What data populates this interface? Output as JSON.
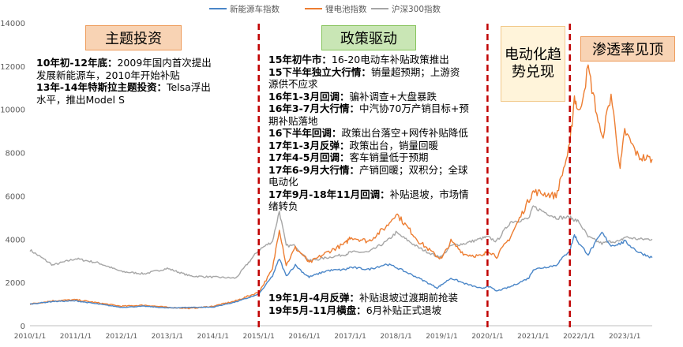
{
  "chart_data": {
    "type": "line",
    "title": "",
    "xlabel": "",
    "ylabel": "",
    "ylim": [
      0,
      14000
    ],
    "yticks": [
      0,
      2000,
      4000,
      6000,
      8000,
      10000,
      12000,
      14000
    ],
    "xtick_labels": [
      "2010/1/1",
      "2011/1/1",
      "2012/1/1",
      "2013/1/1",
      "2014/1/1",
      "2015/1/1",
      "2016/1/1",
      "2017/1/1",
      "2018/1/1",
      "2019/1/1",
      "2020/1/1",
      "2021/1/1",
      "2022/1/1",
      "2023/1/1"
    ],
    "legend_position": "top",
    "grid": false,
    "series": [
      {
        "name": "新能源车指数",
        "color": "#4a86c8",
        "x": [
          2010.0,
          2010.5,
          2011.0,
          2011.5,
          2012.0,
          2012.5,
          2013.0,
          2013.5,
          2014.0,
          2014.5,
          2015.0,
          2015.3,
          2015.45,
          2015.6,
          2015.8,
          2016.0,
          2016.1,
          2016.5,
          2016.9,
          2017.0,
          2017.4,
          2017.8,
          2018.0,
          2018.5,
          2018.9,
          2019.0,
          2019.2,
          2019.5,
          2019.9,
          2020.0,
          2020.2,
          2020.5,
          2020.9,
          2021.0,
          2021.5,
          2021.8,
          2021.9,
          2022.0,
          2022.2,
          2022.5,
          2022.7,
          2022.9,
          2023.0,
          2023.3,
          2023.6
        ],
        "y": [
          1000,
          1120,
          1150,
          1000,
          850,
          900,
          820,
          850,
          860,
          1100,
          1450,
          2300,
          3100,
          2300,
          2800,
          2400,
          2250,
          2550,
          2600,
          2700,
          2600,
          2850,
          2700,
          2200,
          1750,
          1900,
          2200,
          1950,
          1700,
          1850,
          1600,
          1800,
          2200,
          2600,
          2800,
          3500,
          4200,
          3800,
          3300,
          4300,
          3700,
          3800,
          3900,
          3400,
          3150
        ]
      },
      {
        "name": "锂电池指数",
        "color": "#ed7d31",
        "x": [
          2010.0,
          2010.5,
          2011.0,
          2011.5,
          2012.0,
          2012.5,
          2013.0,
          2013.5,
          2014.0,
          2014.5,
          2015.0,
          2015.3,
          2015.45,
          2015.6,
          2015.8,
          2016.0,
          2016.1,
          2016.5,
          2016.9,
          2017.0,
          2017.4,
          2017.8,
          2018.0,
          2018.5,
          2018.9,
          2019.0,
          2019.2,
          2019.5,
          2019.9,
          2020.0,
          2020.2,
          2020.5,
          2020.9,
          2021.0,
          2021.5,
          2021.8,
          2021.9,
          2022.0,
          2022.2,
          2022.5,
          2022.7,
          2022.9,
          2023.0,
          2023.3,
          2023.6
        ],
        "y": [
          1000,
          1150,
          1200,
          1050,
          900,
          950,
          850,
          800,
          900,
          1150,
          1550,
          2600,
          4500,
          2800,
          3600,
          3200,
          2900,
          3400,
          3800,
          4100,
          3900,
          4600,
          5200,
          3900,
          3200,
          3100,
          3900,
          3300,
          3200,
          3500,
          3200,
          4100,
          5800,
          6200,
          6000,
          8300,
          10600,
          9800,
          11900,
          8600,
          10700,
          7300,
          9000,
          7800,
          7700
        ]
      },
      {
        "name": "沪深300指数",
        "color": "#a6a6a6",
        "x": [
          2010.0,
          2010.5,
          2011.0,
          2011.5,
          2012.0,
          2012.5,
          2013.0,
          2013.5,
          2014.0,
          2014.5,
          2015.0,
          2015.3,
          2015.45,
          2015.6,
          2015.8,
          2016.0,
          2016.1,
          2016.5,
          2016.9,
          2017.0,
          2017.4,
          2017.8,
          2018.0,
          2018.5,
          2018.9,
          2019.0,
          2019.2,
          2019.5,
          2019.9,
          2020.0,
          2020.2,
          2020.5,
          2020.9,
          2021.0,
          2021.5,
          2021.8,
          2021.9,
          2022.0,
          2022.2,
          2022.5,
          2022.7,
          2022.9,
          2023.0,
          2023.3,
          2023.6
        ],
        "y": [
          3500,
          2800,
          3100,
          2900,
          2500,
          2400,
          2650,
          2300,
          2250,
          2200,
          3500,
          3900,
          5300,
          3700,
          3700,
          3200,
          3000,
          3150,
          3300,
          3400,
          3400,
          3900,
          4300,
          3600,
          3200,
          3200,
          3700,
          3800,
          4050,
          4100,
          3900,
          4800,
          4950,
          5500,
          5000,
          5000,
          4900,
          4800,
          4100,
          3800,
          3900,
          3900,
          4100,
          4000,
          4000
        ]
      }
    ],
    "vlines_x": [
      2015.0,
      2020.0,
      2021.8
    ],
    "phases": [
      {
        "label": "主题投资",
        "lines": [
          [
            {
              "b": "10年初-12年底：",
              "t": "2009年国内首次提出"
            }
          ],
          [
            {
              "b": "",
              "t": "发展新能源车，2010年开始补贴"
            }
          ],
          [
            {
              "b": "13年-14年特斯拉主题投资：",
              "t": "Telsa浮出"
            }
          ],
          [
            {
              "b": "",
              "t": "水平，推出Model S"
            }
          ]
        ]
      },
      {
        "label": "政策驱动",
        "lines": [
          [
            {
              "b": "15年初牛市：",
              "t": "16-20电动车补贴政策推出"
            }
          ],
          [
            {
              "b": "15下半年独立大行情：",
              "t": "销量超预期；上游资"
            }
          ],
          [
            {
              "b": "",
              "t": "源供不应求"
            }
          ],
          [
            {
              "b": "16年1-3月回调：",
              "t": "骗补调查+大盘暴跌"
            }
          ],
          [
            {
              "b": "16年3-7月大行情：",
              "t": "中汽协70万产销目标+预"
            }
          ],
          [
            {
              "b": "",
              "t": "期补贴落地"
            }
          ],
          [
            {
              "b": "16下半年回调：",
              "t": "政策出台落空+网传补贴降低"
            }
          ],
          [
            {
              "b": "17年1-3月反弹：",
              "t": "政策出台，销量回暖"
            }
          ],
          [
            {
              "b": "17年4-5月回调：",
              "t": "客车销量低于预期"
            }
          ],
          [
            {
              "b": "17年6-9月大行情：",
              "t": "产销回暖；双积分；全球"
            }
          ],
          [
            {
              "b": "",
              "t": "电动化"
            }
          ],
          [
            {
              "b": "17年9月-18年11月回调：",
              "t": "补贴退坡，市场情"
            }
          ],
          [
            {
              "b": "",
              "t": "绪转负"
            }
          ]
        ],
        "lines2": [
          [
            {
              "b": "19年1月-4月反弹：",
              "t": "补贴退坡过渡期前抢装"
            }
          ],
          [
            {
              "b": "19年5月-11月横盘：",
              "t": "6月补贴正式退坡"
            }
          ]
        ]
      },
      {
        "label": "电动化趋势兑现"
      },
      {
        "label": "渗透率见顶"
      }
    ]
  }
}
